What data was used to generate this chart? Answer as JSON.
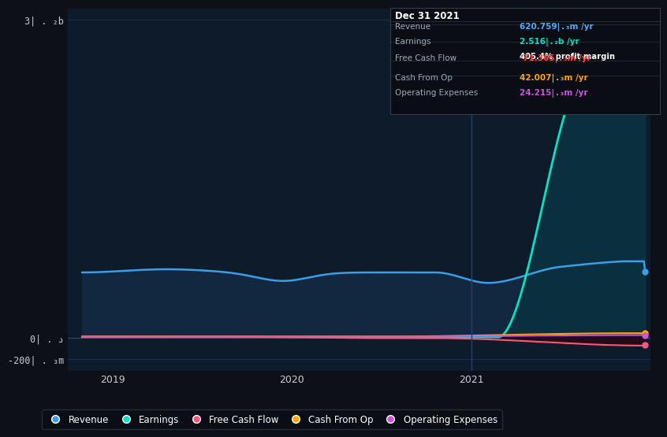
{
  "bg_color": "#0d1117",
  "plot_bg_color": "#0d1b2a",
  "grid_color": "#1e3050",
  "tooltip": {
    "date": "Dec 31 2021",
    "rows": [
      {
        "label": "Revenue",
        "value": "620.759| . ₃m /yr",
        "value_color": "#4dabf7",
        "sub": null
      },
      {
        "label": "Earnings",
        "value": "2.516| . ₂b /yr",
        "value_color": "#00e5c8",
        "sub": "405.4% profit margin"
      },
      {
        "label": "Free Cash Flow",
        "value": "-71.365| . ₃m /yr",
        "value_color": "#ff4444",
        "sub": null
      },
      {
        "label": "Cash From Op",
        "value": "42.007| . ₃m /yr",
        "value_color": "#ffa500",
        "sub": null
      },
      {
        "label": "Operating Expenses",
        "value": "24.215| . ₃m /yr",
        "value_color": "#cc55dd",
        "sub": null
      }
    ]
  },
  "ytick_labels": [
    "3| . ₂b",
    "0| . د",
    "-200| . ₃m"
  ],
  "ytick_values": [
    3000,
    0,
    -200
  ],
  "xtick_labels": [
    "2019",
    "2020",
    "2021"
  ],
  "xmin": 2018.75,
  "xmax": 2022.0,
  "ymin": -310,
  "ymax": 3100,
  "series": {
    "revenue": {
      "color": "#3a9ee8",
      "fill": "#122840",
      "label": "Revenue"
    },
    "earnings": {
      "color": "#00e5c8",
      "fill": "#0a3040",
      "label": "Earnings"
    },
    "free_cash_flow": {
      "color": "#ff5577",
      "fill": "#250a18",
      "label": "Free Cash Flow"
    },
    "cash_from_op": {
      "color": "#ffa500",
      "fill": "#1a1400",
      "label": "Cash From Op"
    },
    "operating_expenses": {
      "color": "#cc55dd",
      "fill": "#180a22",
      "label": "Operating Expenses"
    }
  },
  "vline_x": 2021.0,
  "vline_color": "#2a4060"
}
